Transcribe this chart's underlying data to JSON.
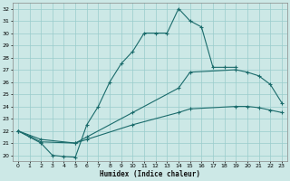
{
  "xlabel": "Humidex (Indice chaleur)",
  "bg_color": "#cce8e6",
  "grid_color": "#99cccc",
  "line_color": "#1a6b6b",
  "xlim": [
    -0.5,
    23.5
  ],
  "ylim": [
    19.5,
    32.5
  ],
  "xticks": [
    0,
    1,
    2,
    3,
    4,
    5,
    6,
    7,
    8,
    9,
    10,
    11,
    12,
    13,
    14,
    15,
    16,
    17,
    18,
    19,
    20,
    21,
    22,
    23
  ],
  "yticks": [
    20,
    21,
    22,
    23,
    24,
    25,
    26,
    27,
    28,
    29,
    30,
    31,
    32
  ],
  "line1_x": [
    0,
    1,
    2,
    3,
    4,
    5,
    6,
    7,
    8,
    9,
    10,
    11,
    12,
    13,
    14,
    15,
    16,
    17,
    18,
    19
  ],
  "line1_y": [
    22.0,
    21.5,
    21.0,
    20.0,
    19.9,
    19.85,
    22.5,
    24.0,
    26.0,
    27.5,
    28.5,
    30.0,
    30.0,
    30.0,
    32.0,
    31.0,
    30.5,
    27.2,
    27.2,
    27.2
  ],
  "line2_x": [
    0,
    2,
    5,
    6,
    10,
    14,
    15,
    19,
    20,
    21,
    22,
    23
  ],
  "line2_y": [
    22.0,
    21.3,
    21.0,
    21.5,
    23.5,
    25.5,
    26.8,
    27.0,
    26.8,
    26.5,
    25.8,
    24.3
  ],
  "line3_x": [
    0,
    2,
    5,
    6,
    10,
    14,
    15,
    19,
    20,
    21,
    22,
    23
  ],
  "line3_y": [
    22.0,
    21.1,
    21.0,
    21.3,
    22.5,
    23.5,
    23.8,
    24.0,
    24.0,
    23.9,
    23.7,
    23.5
  ]
}
